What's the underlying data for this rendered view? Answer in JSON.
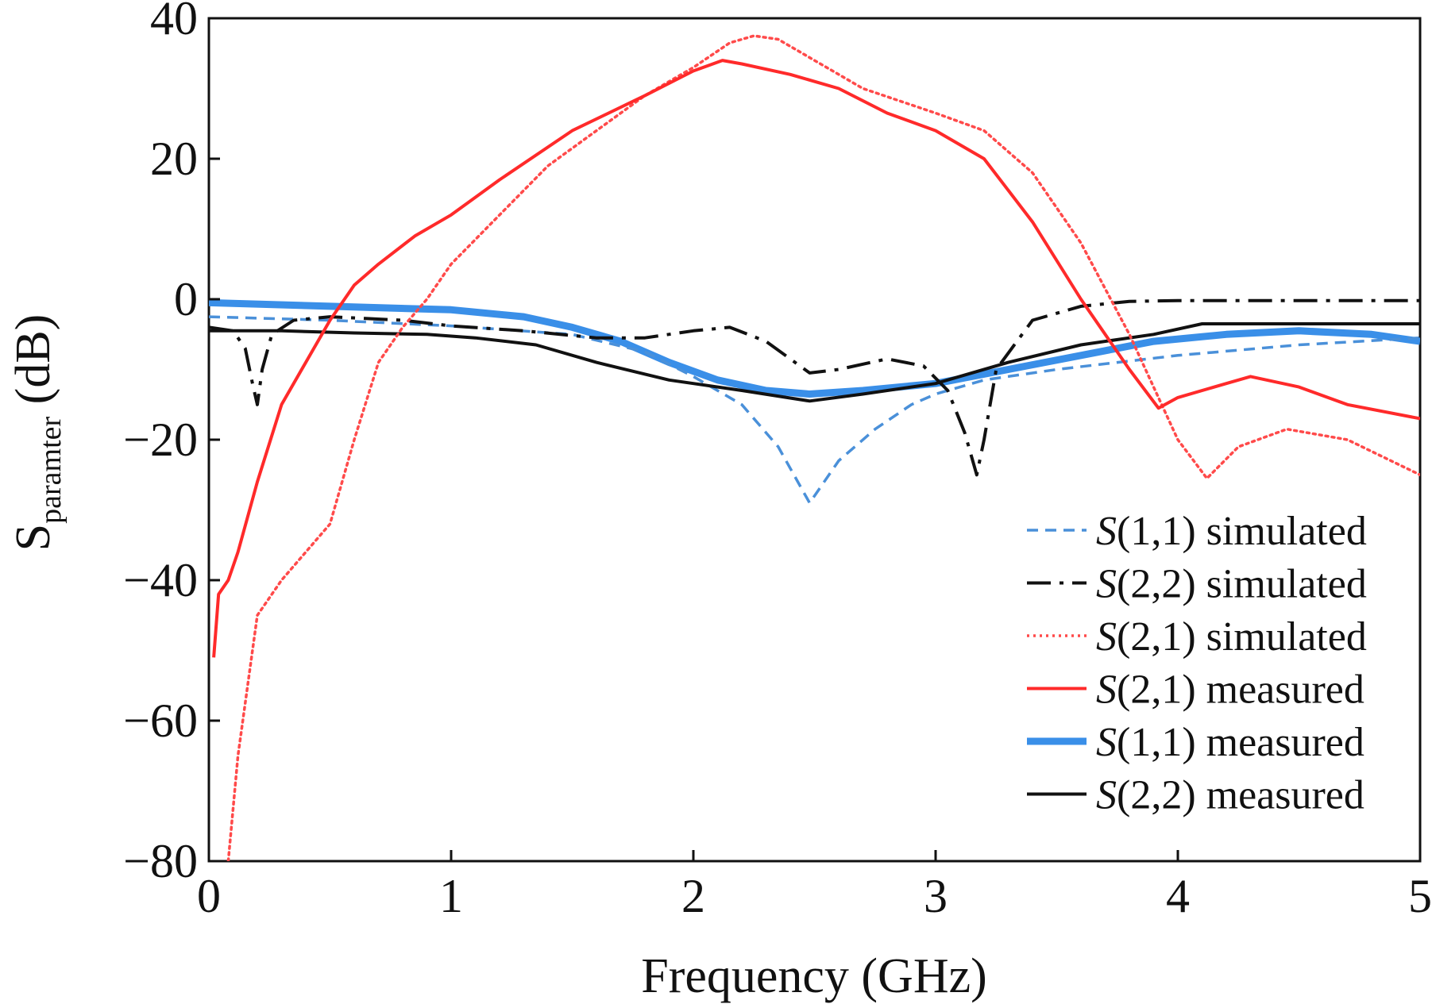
{
  "chart_data": {
    "type": "line",
    "title": "",
    "xlabel": "Frequency (GHz)",
    "ylabel": {
      "base": "S",
      "subscript": "paramter",
      "suffix": " (dB)"
    },
    "xlim": [
      0,
      5
    ],
    "ylim": [
      -80,
      40
    ],
    "xticks": [
      0,
      1,
      2,
      3,
      4,
      5
    ],
    "yticks": [
      40,
      20,
      0,
      -20,
      -40,
      -60,
      -80
    ],
    "ytick_labels": [
      "40",
      "20",
      "0",
      "−20",
      "−40",
      "−60",
      "−80"
    ],
    "grid": false,
    "legend_position": "bottom-right",
    "series": [
      {
        "name": "S(1,1) simulated",
        "legend": {
          "param": "S",
          "rest": "(1,1) simulated"
        },
        "color": "#4a90d9",
        "style": "dashed",
        "x": [
          0,
          0.5,
          1.0,
          1.5,
          1.8,
          2.0,
          2.2,
          2.35,
          2.48,
          2.6,
          2.75,
          2.9,
          3.0,
          3.2,
          3.5,
          4.0,
          4.5,
          5.0
        ],
        "y": [
          -2.5,
          -3,
          -3.8,
          -5,
          -7.5,
          -11,
          -15,
          -21,
          -29,
          -23,
          -18.5,
          -15,
          -13.5,
          -11.5,
          -10,
          -8,
          -6.5,
          -5.5
        ]
      },
      {
        "name": "S(2,2) simulated",
        "legend": {
          "param": "S",
          "rest": "(2,2) simulated"
        },
        "color": "#111111",
        "style": "dashdot",
        "x": [
          0,
          0.1,
          0.15,
          0.18,
          0.2,
          0.22,
          0.26,
          0.35,
          0.5,
          0.8,
          1.0,
          1.3,
          1.6,
          1.8,
          2.0,
          2.15,
          2.3,
          2.48,
          2.6,
          2.8,
          2.95,
          3.05,
          3.12,
          3.17,
          3.2,
          3.25,
          3.4,
          3.6,
          3.8,
          4.0,
          4.5,
          5.0
        ],
        "y": [
          -4,
          -4.5,
          -7,
          -12,
          -15,
          -10,
          -5,
          -3,
          -2.5,
          -3,
          -3.8,
          -4.5,
          -5.5,
          -5.5,
          -4.5,
          -4,
          -6,
          -10.5,
          -10,
          -8.5,
          -9.5,
          -13,
          -19,
          -25,
          -20,
          -10,
          -3,
          -1,
          -0.3,
          -0.2,
          -0.2,
          -0.2
        ]
      },
      {
        "name": "S(2,1) simulated",
        "legend": {
          "param": "S",
          "rest": "(2,1) simulated"
        },
        "color": "#ff4a4a",
        "style": "dotted",
        "x": [
          0.08,
          0.12,
          0.2,
          0.3,
          0.4,
          0.5,
          0.6,
          0.7,
          0.8,
          0.9,
          1.0,
          1.2,
          1.4,
          1.6,
          1.8,
          2.0,
          2.15,
          2.25,
          2.35,
          2.5,
          2.7,
          3.0,
          3.2,
          3.4,
          3.6,
          3.8,
          4.0,
          4.12,
          4.25,
          4.45,
          4.7,
          5.0
        ],
        "y": [
          -80,
          -65,
          -45,
          -40,
          -36,
          -32,
          -20,
          -9,
          -4,
          0,
          5,
          12,
          19,
          24,
          29,
          33,
          36.5,
          37.5,
          37,
          34,
          30,
          26.5,
          24,
          18,
          8,
          -5,
          -20,
          -25.5,
          -21,
          -18.5,
          -20,
          -25
        ]
      },
      {
        "name": "S(2,1) measured",
        "legend": {
          "param": "S",
          "rest": "(2,1) measured"
        },
        "color": "#ff2a2a",
        "style": "solid",
        "x": [
          0.02,
          0.04,
          0.08,
          0.12,
          0.2,
          0.3,
          0.4,
          0.5,
          0.6,
          0.7,
          0.85,
          1.0,
          1.2,
          1.5,
          1.8,
          2.0,
          2.12,
          2.2,
          2.4,
          2.6,
          2.8,
          3.0,
          3.2,
          3.4,
          3.6,
          3.8,
          3.92,
          4.0,
          4.2,
          4.3,
          4.5,
          4.7,
          5.0
        ],
        "y": [
          -51,
          -42,
          -40,
          -36,
          -26,
          -15,
          -9,
          -3,
          2,
          5,
          9,
          12,
          17,
          24,
          29,
          32.5,
          34,
          33.5,
          32,
          30,
          26.5,
          24,
          20,
          11,
          0,
          -10,
          -15.5,
          -14,
          -12,
          -11,
          -12.5,
          -15,
          -17
        ]
      },
      {
        "name": "S(1,1) measured",
        "legend": {
          "param": "S",
          "rest": "(1,1) measured"
        },
        "color": "#3a8fe8",
        "style": "solid-thick",
        "x": [
          0,
          0.5,
          1.0,
          1.3,
          1.5,
          1.7,
          1.9,
          2.1,
          2.3,
          2.48,
          2.7,
          3.0,
          3.3,
          3.6,
          3.9,
          4.2,
          4.5,
          4.8,
          5.0
        ],
        "y": [
          -0.5,
          -1,
          -1.5,
          -2.5,
          -4,
          -6,
          -9,
          -11.5,
          -13,
          -13.5,
          -13,
          -12,
          -10,
          -8,
          -6,
          -5,
          -4.5,
          -5,
          -6
        ]
      },
      {
        "name": "S(2,2) measured",
        "legend": {
          "param": "S",
          "rest": "(2,2) measured"
        },
        "color": "#111111",
        "style": "solid",
        "x": [
          0,
          0.3,
          0.6,
          0.9,
          1.1,
          1.35,
          1.6,
          1.9,
          2.2,
          2.48,
          2.7,
          3.0,
          3.3,
          3.6,
          3.9,
          4.1,
          4.5,
          5.0
        ],
        "y": [
          -4.5,
          -4.5,
          -4.8,
          -5,
          -5.5,
          -6.5,
          -9,
          -11.5,
          -13,
          -14.5,
          -13.5,
          -12,
          -9,
          -6.5,
          -5,
          -3.5,
          -3.5,
          -3.5
        ]
      }
    ]
  }
}
